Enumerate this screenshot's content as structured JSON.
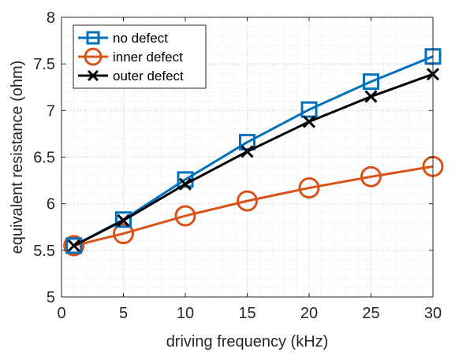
{
  "chart_data": {
    "type": "line",
    "title": "",
    "xlabel": "driving frequency (kHz)",
    "ylabel": "equivalent resistance (ohm)",
    "xlim": [
      0,
      30
    ],
    "ylim": [
      5,
      8
    ],
    "x_ticks": [
      0,
      5,
      10,
      15,
      20,
      25,
      30
    ],
    "x_tick_labels": [
      "0",
      "5",
      "10",
      "15",
      "20",
      "25",
      "30"
    ],
    "y_ticks": [
      5,
      5.5,
      6,
      6.5,
      7,
      7.5,
      8
    ],
    "y_tick_labels": [
      "5",
      "5.5",
      "6",
      "6.5",
      "7",
      "7.5",
      "8"
    ],
    "grid": "major and minor, dotted",
    "legend_position": "top-left",
    "x": [
      1,
      5,
      10,
      15,
      20,
      25,
      30
    ],
    "series": [
      {
        "name": "no defect",
        "marker": "square",
        "color": "#0072BD",
        "values": [
          5.55,
          5.83,
          6.26,
          6.66,
          7.01,
          7.31,
          7.58
        ]
      },
      {
        "name": "inner defect",
        "marker": "circle",
        "color": "#D95319",
        "values": [
          5.55,
          5.68,
          5.87,
          6.03,
          6.17,
          6.29,
          6.4
        ]
      },
      {
        "name": "outer defect",
        "marker": "x",
        "color": "#000000",
        "values": [
          5.55,
          5.82,
          6.21,
          6.56,
          6.88,
          7.15,
          7.39
        ]
      }
    ]
  }
}
